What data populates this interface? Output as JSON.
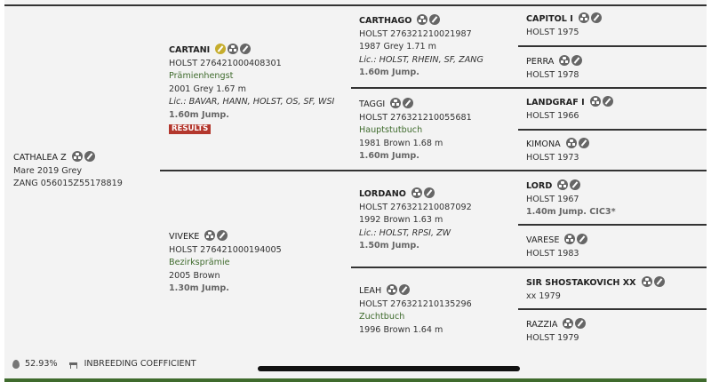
{
  "colors": {
    "accent_green": "#3f6b2d",
    "results_red": "#b3372d",
    "icon_gray": "#666666",
    "icon_gold": "#c6ad2d"
  },
  "horses": [
    {
      "id": "cathalea-z",
      "icons": [
        "pedigree-icon",
        "edit-icon"
      ],
      "lines": [
        {
          "t": "name",
          "v": "CATHALEA Z"
        },
        {
          "t": "text",
          "v": "Mare 2019 Grey"
        },
        {
          "t": "text",
          "v": "ZANG 056015Z55178819"
        }
      ]
    },
    {
      "id": "cartani",
      "icons": [
        "licensed-icon",
        "pedigree-icon",
        "edit-icon"
      ],
      "lines": [
        {
          "t": "name-bold",
          "v": "CARTANI"
        },
        {
          "t": "text",
          "v": "HOLST 276421000408301"
        },
        {
          "t": "green",
          "v": "Prämienhengst"
        },
        {
          "t": "text",
          "v": "2001 Grey 1.67 m"
        },
        {
          "t": "italic",
          "v": "Lic.: BAVAR, HANN, HOLST, OS, SF, WSI"
        },
        {
          "t": "perf",
          "v": "1.60m Jump."
        },
        {
          "t": "results",
          "v": "RESULTS"
        }
      ]
    },
    {
      "id": "viveke",
      "icons": [
        "pedigree-icon",
        "edit-icon"
      ],
      "lines": [
        {
          "t": "name",
          "v": "VIVEKE"
        },
        {
          "t": "text",
          "v": "HOLST 276421000194005"
        },
        {
          "t": "green",
          "v": "Bezirksprämie"
        },
        {
          "t": "text",
          "v": "2005 Brown"
        },
        {
          "t": "perf",
          "v": "1.30m Jump."
        }
      ]
    },
    {
      "id": "carthago",
      "icons": [
        "pedigree-icon",
        "edit-icon"
      ],
      "lines": [
        {
          "t": "name-bold",
          "v": "CARTHAGO"
        },
        {
          "t": "text",
          "v": "HOLST 276321210021987"
        },
        {
          "t": "text",
          "v": "1987 Grey 1.71 m"
        },
        {
          "t": "italic",
          "v": "Lic.: HOLST, RHEIN, SF, ZANG"
        },
        {
          "t": "perf",
          "v": "1.60m Jump."
        }
      ]
    },
    {
      "id": "taggi",
      "icons": [
        "pedigree-icon",
        "edit-icon"
      ],
      "lines": [
        {
          "t": "name",
          "v": "TAGGI"
        },
        {
          "t": "text",
          "v": "HOLST 276321210055681"
        },
        {
          "t": "green",
          "v": "Hauptstutbuch"
        },
        {
          "t": "text",
          "v": "1981 Brown 1.68 m"
        },
        {
          "t": "perf",
          "v": "1.60m Jump."
        }
      ]
    },
    {
      "id": "lordano",
      "icons": [
        "pedigree-icon",
        "edit-icon"
      ],
      "lines": [
        {
          "t": "name-bold",
          "v": "LORDANO"
        },
        {
          "t": "text",
          "v": "HOLST 276321210087092"
        },
        {
          "t": "text",
          "v": "1992 Brown 1.63 m"
        },
        {
          "t": "italic",
          "v": "Lic.: HOLST, RPSI, ZW"
        },
        {
          "t": "perf",
          "v": "1.50m Jump."
        }
      ]
    },
    {
      "id": "leah",
      "icons": [
        "pedigree-icon",
        "edit-icon"
      ],
      "lines": [
        {
          "t": "name",
          "v": "LEAH"
        },
        {
          "t": "text",
          "v": "HOLST 276321210135296"
        },
        {
          "t": "green",
          "v": "Zuchtbuch"
        },
        {
          "t": "text",
          "v": "1996 Brown 1.64 m"
        }
      ]
    },
    {
      "id": "capitol-i",
      "icons": [
        "pedigree-icon",
        "edit-icon"
      ],
      "lines": [
        {
          "t": "name-bold",
          "v": "CAPITOL I"
        },
        {
          "t": "text",
          "v": "HOLST 1975"
        }
      ]
    },
    {
      "id": "perra",
      "icons": [
        "pedigree-icon",
        "edit-icon"
      ],
      "lines": [
        {
          "t": "name",
          "v": "PERRA"
        },
        {
          "t": "text",
          "v": "HOLST 1978"
        }
      ]
    },
    {
      "id": "landgraf-i",
      "icons": [
        "pedigree-icon",
        "edit-icon"
      ],
      "lines": [
        {
          "t": "name-bold",
          "v": "LANDGRAF I"
        },
        {
          "t": "text",
          "v": "HOLST 1966"
        }
      ]
    },
    {
      "id": "kimona",
      "icons": [
        "pedigree-icon",
        "edit-icon"
      ],
      "lines": [
        {
          "t": "name",
          "v": "KIMONA"
        },
        {
          "t": "text",
          "v": "HOLST 1973"
        }
      ]
    },
    {
      "id": "lord",
      "icons": [
        "pedigree-icon",
        "edit-icon"
      ],
      "lines": [
        {
          "t": "name-bold",
          "v": "LORD"
        },
        {
          "t": "text",
          "v": "HOLST 1967"
        },
        {
          "t": "perf",
          "v": "1.40m Jump. CIC3*"
        }
      ]
    },
    {
      "id": "varese",
      "icons": [
        "pedigree-icon",
        "edit-icon"
      ],
      "lines": [
        {
          "t": "name",
          "v": "VARESE"
        },
        {
          "t": "text",
          "v": "HOLST 1983"
        }
      ]
    },
    {
      "id": "sir-shostakovich-xx",
      "icons": [
        "pedigree-icon",
        "edit-icon"
      ],
      "lines": [
        {
          "t": "name-bold",
          "v": "SIR SHOSTAKOVICH XX"
        },
        {
          "t": "text",
          "v": "xx 1979"
        }
      ]
    },
    {
      "id": "razzia",
      "icons": [
        "pedigree-icon",
        "edit-icon"
      ],
      "lines": [
        {
          "t": "name",
          "v": "RAZZIA"
        },
        {
          "t": "text",
          "v": "HOLST 1979"
        }
      ]
    }
  ],
  "footer": {
    "inbreeding_value": "52.93%",
    "inbreeding_label": "INBREEDING COEFFICIENT"
  }
}
